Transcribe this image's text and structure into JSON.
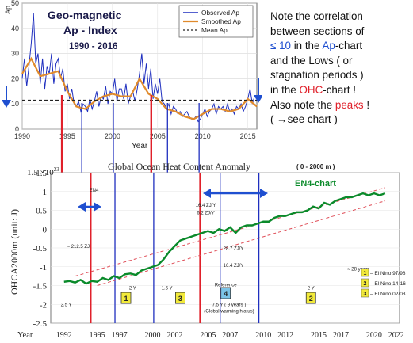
{
  "note": {
    "l1": "Note the correlation",
    "l2": "between sections of",
    "l3a": "≤ 10",
    "l3b": " in the ",
    "l3c": "Ap",
    "l3d": "-chart",
    "l4": "and the Lows ( or",
    "l5": "stagnation periods )",
    "l6a": "in the ",
    "l6b": "OHC",
    "l6c": "-chart !",
    "l7a": "Also note the ",
    "l7b": "peaks",
    "l7c": " !",
    "l8": "( →see chart )"
  },
  "colors": {
    "observed": "#1f2fbf",
    "smoothed": "#e08a2c",
    "mean": "#222222",
    "en4": "#0a8a2a",
    "trend": "#e0505a",
    "peak_marker": "#e0202a",
    "low_marker": "#1f2fbf",
    "arrow": "#1f4fd0"
  },
  "chart_data": [
    {
      "type": "line",
      "title": "Geo-magnetic",
      "subtitle": "Ap - Index",
      "period": "1990 - 2016",
      "xlabel": "Year",
      "ylabel": "Ap",
      "xlim": [
        1990,
        2016
      ],
      "ylim": [
        0,
        50
      ],
      "x_ticks": [
        1990,
        1995,
        2000,
        2005,
        2010,
        2015
      ],
      "y_ticks": [
        0,
        10,
        20,
        30,
        40,
        50
      ],
      "legend": [
        "Observed Ap",
        "Smoothed Ap",
        "Mean Ap"
      ],
      "legend_position": "top-right",
      "mean_value": 11.5,
      "threshold_value": 8,
      "smoothed": {
        "name": "Smoothed Ap",
        "x": [
          1990,
          1991,
          1992,
          1993,
          1994,
          1995,
          1996,
          1997,
          1998,
          1999,
          2000,
          2001,
          2002,
          2003,
          2004,
          2005,
          2006,
          2007,
          2008,
          2009,
          2010,
          2011,
          2012,
          2013,
          2014,
          2015,
          2016
        ],
        "y": [
          22,
          28,
          21,
          22,
          23,
          15,
          9,
          8,
          11,
          13,
          14,
          13,
          13,
          20,
          14,
          12,
          8,
          7,
          5,
          4,
          6,
          8,
          8,
          7,
          8,
          12,
          9
        ]
      },
      "observed": {
        "name": "Observed Ap",
        "x": [
          1990,
          1990.25,
          1990.5,
          1990.75,
          1991,
          1991.25,
          1991.5,
          1991.75,
          1992,
          1992.25,
          1992.5,
          1992.75,
          1993,
          1993.25,
          1993.5,
          1993.75,
          1994,
          1994.25,
          1994.5,
          1994.75,
          1995,
          1995.25,
          1995.5,
          1995.75,
          1996,
          1996.25,
          1996.5,
          1996.75,
          1997,
          1997.25,
          1997.5,
          1997.75,
          1998,
          1998.25,
          1998.5,
          1998.75,
          1999,
          1999.25,
          1999.5,
          1999.75,
          2000,
          2000.25,
          2000.5,
          2000.75,
          2001,
          2001.25,
          2001.5,
          2001.75,
          2002,
          2002.25,
          2002.5,
          2002.75,
          2003,
          2003.25,
          2003.5,
          2003.75,
          2004,
          2004.25,
          2004.5,
          2004.75,
          2005,
          2005.25,
          2005.5,
          2005.75,
          2006,
          2006.25,
          2006.5,
          2006.75,
          2007,
          2007.25,
          2007.5,
          2007.75,
          2008,
          2008.25,
          2008.5,
          2008.75,
          2009,
          2009.25,
          2009.5,
          2009.75,
          2010,
          2010.25,
          2010.5,
          2010.75,
          2011,
          2011.25,
          2011.5,
          2011.75,
          2012,
          2012.25,
          2012.5,
          2012.75,
          2013,
          2013.25,
          2013.5,
          2013.75,
          2014,
          2014.25,
          2014.5,
          2014.75,
          2015,
          2015.25,
          2015.5,
          2015.75
        ],
        "y": [
          20,
          28,
          17,
          25,
          34,
          46,
          26,
          30,
          18,
          28,
          16,
          25,
          22,
          30,
          18,
          26,
          28,
          20,
          24,
          15,
          18,
          12,
          16,
          10,
          9,
          11,
          7,
          10,
          9,
          7,
          12,
          8,
          11,
          15,
          9,
          13,
          12,
          17,
          10,
          15,
          14,
          20,
          11,
          16,
          16,
          12,
          18,
          10,
          13,
          15,
          11,
          16,
          22,
          30,
          18,
          26,
          16,
          24,
          12,
          18,
          14,
          20,
          11,
          10,
          8,
          10,
          6,
          9,
          8,
          6,
          7,
          5,
          6,
          7,
          5,
          4,
          4,
          5,
          3,
          4,
          6,
          8,
          5,
          7,
          8,
          10,
          6,
          9,
          8,
          9,
          7,
          10,
          7,
          8,
          6,
          9,
          8,
          10,
          7,
          9,
          12,
          16,
          10,
          13
        ]
      }
    },
    {
      "type": "line",
      "title": "Global Ocean Heat Content Anomaly",
      "title_range": "( 0 - 2000 m )",
      "series_label": "EN4-chart",
      "ylabel": "OHCA2000m (unit: J)",
      "scale_note": "1.5 ×10",
      "scale_exp": "23",
      "xlim": [
        1990.8,
        2022.3
      ],
      "ylim": [
        -2.5,
        1.5
      ],
      "x_label_prefix": "Year",
      "x_ticks": [
        1992,
        1995,
        1997,
        2000,
        2002,
        2005,
        2007,
        2010,
        2012,
        2015,
        2017,
        2020,
        2022
      ],
      "y_ticks": [
        -2.5,
        -2,
        -1.5,
        -1,
        -0.5,
        0,
        0.5,
        1,
        1.5
      ],
      "y_tick_labels": [
        "-2.5",
        "-2",
        "-1.5",
        "-1",
        "-0.5",
        "0",
        "0.5",
        "1",
        "1.5"
      ],
      "en4": {
        "name": "EN4",
        "x": [
          1992,
          1992.5,
          1993,
          1993.5,
          1994,
          1994.5,
          1995,
          1995.5,
          1996,
          1996.5,
          1997,
          1997.5,
          1998,
          1998.5,
          1999,
          1999.5,
          2000,
          2000.5,
          2001,
          2001.5,
          2002,
          2002.5,
          2003,
          2003.5,
          2004,
          2004.5,
          2005,
          2005.5,
          2006,
          2006.5,
          2007,
          2007.5,
          2008,
          2008.5,
          2009,
          2009.5,
          2010,
          2010.5,
          2011,
          2011.5,
          2012,
          2012.5,
          2013,
          2013.5,
          2014,
          2014.5,
          2015,
          2015.5,
          2016,
          2016.5,
          2017,
          2017.5,
          2018,
          2018.5,
          2019,
          2019.5,
          2020,
          2020.5,
          2021
        ],
        "y": [
          -1.4,
          -1.38,
          -1.42,
          -1.35,
          -1.45,
          -1.38,
          -1.4,
          -1.3,
          -1.35,
          -1.25,
          -1.3,
          -1.2,
          -1.18,
          -1.22,
          -1.1,
          -1.05,
          -1.0,
          -0.95,
          -0.8,
          -0.6,
          -0.45,
          -0.3,
          -0.25,
          -0.2,
          -0.15,
          -0.1,
          -0.05,
          -0.1,
          0.0,
          -0.05,
          0.05,
          -0.1,
          0.05,
          0.1,
          0.1,
          0.15,
          0.2,
          0.2,
          0.3,
          0.35,
          0.35,
          0.4,
          0.45,
          0.45,
          0.5,
          0.6,
          0.55,
          0.7,
          0.65,
          0.75,
          0.8,
          0.85,
          0.85,
          0.9,
          0.95,
          0.9,
          0.95,
          0.9,
          0.95
        ]
      },
      "annotations": [
        {
          "text": "≈ 212.5 ZJ",
          "x": 1993.3,
          "y": -0.5
        },
        {
          "text": "16.4 ZJ/Y",
          "x": 2004.8,
          "y": 0.6
        },
        {
          "text": "6.2 ZJ/Y",
          "x": 2004.8,
          "y": 0.4
        },
        {
          "text": "28.7 ZJ/Y",
          "x": 2007.3,
          "y": -0.55
        },
        {
          "text": "16.4 ZJ/Y",
          "x": 2007.3,
          "y": -1.0
        },
        {
          "text": "≈ 28 years",
          "x": 2018.6,
          "y": -1.1
        },
        {
          "text": "2.5 Y",
          "x": 1992.2,
          "y": -2.05
        },
        {
          "text": "2 Y",
          "x": 1998.2,
          "y": -1.6
        },
        {
          "text": "1.5 Y",
          "x": 2001.3,
          "y": -1.6
        },
        {
          "text": "2 Y",
          "x": 2014.3,
          "y": -1.6
        },
        {
          "text": "Reference",
          "x": 2006.6,
          "y": -1.52
        },
        {
          "text": "7.5 Y ( 9 years )",
          "x": 2006.9,
          "y": -2.05
        },
        {
          "text": "(Global warming hiatus)",
          "x": 2006.9,
          "y": -2.22
        },
        {
          "text": "EN4",
          "x": 1994.7,
          "y": 1.0
        }
      ],
      "boxes": [
        {
          "label": "1",
          "x": 1997.6,
          "y": -1.85,
          "fill": "#f2ea3a"
        },
        {
          "label": "3",
          "x": 2002.5,
          "y": -1.85,
          "fill": "#f2ea3a"
        },
        {
          "label": "4",
          "x": 2006.6,
          "y": -1.72,
          "fill": "#7cc4e8"
        },
        {
          "label": "2",
          "x": 2014.3,
          "y": -1.85,
          "fill": "#f2ea3a"
        }
      ],
      "nino_legend": [
        {
          "num": "1",
          "text": "– El Nino 97/98",
          "fill": "#f2ea3a"
        },
        {
          "num": "2",
          "text": "– El Nino 14-16",
          "fill": "#f2ea3a"
        },
        {
          "num": "3",
          "text": "– El Nino 02/03",
          "fill": "#f2ea3a"
        }
      ],
      "peak_markers_x": [
        1994.4,
        2004.3
      ],
      "low_markers_x": [
        1996.6,
        2000.1,
        2006.1,
        2009.6
      ]
    }
  ]
}
